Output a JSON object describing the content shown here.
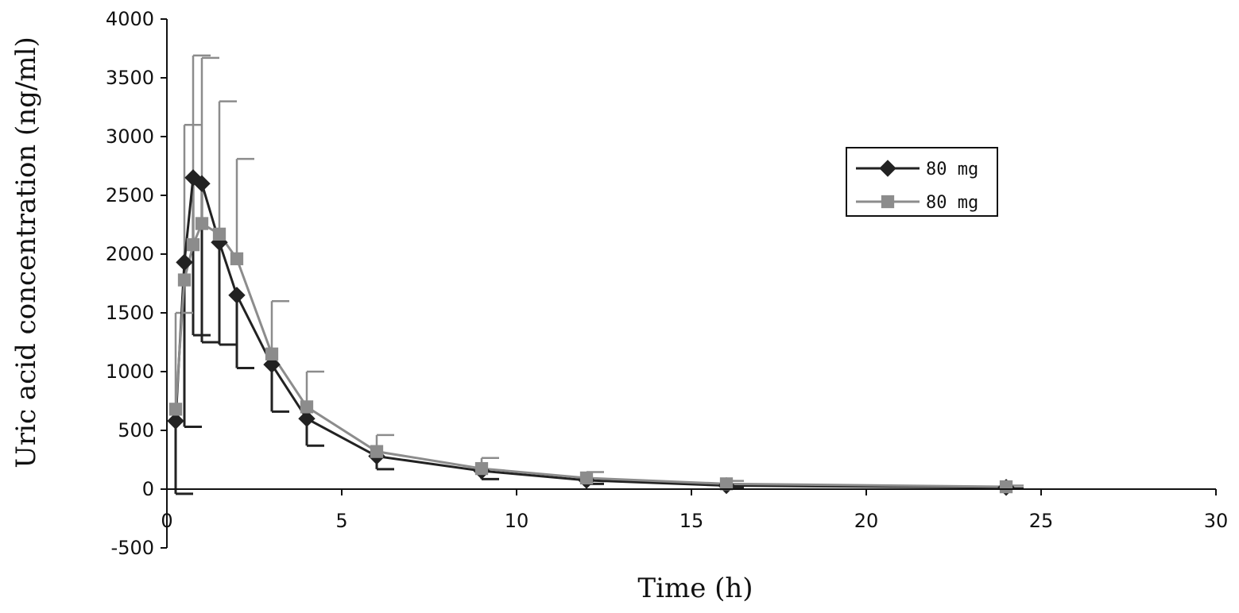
{
  "chart_data": {
    "type": "line",
    "xlabel": "Time (h)",
    "ylabel": "Uric acid concentration (ng/ml)",
    "xlim": [
      0,
      30
    ],
    "ylim": [
      -500,
      4000
    ],
    "x_ticks": [
      0,
      5,
      10,
      15,
      20,
      25,
      30
    ],
    "y_ticks": [
      -500,
      0,
      500,
      1000,
      1500,
      2000,
      2500,
      3000,
      3500,
      4000
    ],
    "grid": false,
    "legend_position": "top-right",
    "series": [
      {
        "name": "80 mg",
        "marker": "diamond",
        "color": "#222222",
        "error_direction": "down",
        "x": [
          0.25,
          0.5,
          0.75,
          1,
          1.5,
          2,
          3,
          4,
          6,
          9,
          12,
          16,
          24
        ],
        "y": [
          580,
          1930,
          2650,
          2600,
          2100,
          1650,
          1060,
          600,
          280,
          155,
          75,
          30,
          15
        ],
        "err": [
          620,
          1400,
          1340,
          1350,
          870,
          620,
          400,
          230,
          110,
          70,
          30,
          15,
          8
        ]
      },
      {
        "name": "80 mg",
        "marker": "square",
        "color": "#8c8c8c",
        "error_direction": "up",
        "x": [
          0.25,
          0.5,
          0.75,
          1,
          1.5,
          2,
          3,
          4,
          6,
          9,
          12,
          16,
          24
        ],
        "y": [
          680,
          1780,
          2080,
          2260,
          2170,
          1960,
          1150,
          700,
          320,
          175,
          95,
          45,
          20
        ],
        "err": [
          820,
          1320,
          1610,
          1410,
          1130,
          850,
          450,
          300,
          140,
          90,
          50,
          25,
          10
        ]
      }
    ]
  }
}
